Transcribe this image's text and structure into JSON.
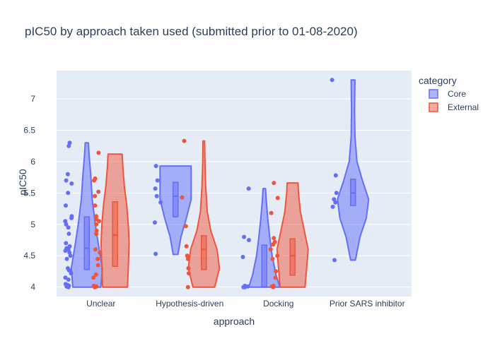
{
  "chart_data": {
    "type": "violin",
    "title": "pIC50 by approach taken used (submitted prior to 01-08-2020)",
    "xlabel": "approach",
    "ylabel": "pIC50",
    "categories": [
      "Unclear",
      "Hypothesis-driven",
      "Docking",
      "Prior SARS inhibitor"
    ],
    "y_ticks": [
      "4",
      "4.5",
      "5",
      "5.5",
      "6",
      "6.5",
      "7"
    ],
    "ylim": [
      3.85,
      7.45
    ],
    "grid": true,
    "legend_title": "category",
    "legend_position": "top-right",
    "colors": {
      "Core": "#636efa",
      "External": "#ef553b",
      "plot_bg": "#e5ecf6",
      "grid": "#ffffff",
      "text": "#2a3f5f"
    },
    "series": [
      {
        "name": "Core",
        "groups": [
          {
            "category": "Unclear",
            "points": [
              4.0,
              4.02,
              4.05,
              4.01,
              4.03,
              4.12,
              4.15,
              4.22,
              4.27,
              4.3,
              4.45,
              4.5,
              4.55,
              4.58,
              4.6,
              4.62,
              4.65,
              4.7,
              4.85,
              4.95,
              5.0,
              5.05,
              5.1,
              5.13,
              5.3,
              5.5,
              5.65,
              5.7,
              5.8,
              6.25,
              6.3
            ],
            "box": {
              "q1": 4.28,
              "median": 4.62,
              "q3": 5.12
            },
            "kde_x": [
              4.0,
              4.3,
              4.6,
              5.0,
              5.4,
              5.8,
              6.1,
              6.3
            ],
            "kde_w": [
              0.9,
              1.0,
              0.8,
              0.55,
              0.35,
              0.25,
              0.15,
              0.1
            ]
          },
          {
            "category": "Hypothesis-driven",
            "points": [
              4.53,
              5.03,
              5.35,
              5.45,
              5.57,
              5.7,
              5.93
            ],
            "box": {
              "q1": 5.12,
              "median": 5.45,
              "q3": 5.67
            },
            "kde_x": [
              4.52,
              4.8,
              5.1,
              5.4,
              5.6,
              5.8,
              5.93
            ],
            "kde_w": [
              0.15,
              0.35,
              0.7,
              1.0,
              1.0,
              1.0,
              1.0
            ]
          },
          {
            "category": "Docking",
            "points": [
              4.0,
              4.01,
              4.02,
              4.0,
              4.48,
              4.75,
              4.8,
              5.57
            ],
            "box": {
              "q1": 4.0,
              "median": 4.0,
              "q3": 4.67
            },
            "kde_x": [
              4.0,
              4.2,
              4.5,
              4.8,
              5.1,
              5.4,
              5.57
            ],
            "kde_w": [
              1.0,
              0.75,
              0.5,
              0.35,
              0.22,
              0.12,
              0.08
            ]
          },
          {
            "category": "Prior SARS inhibitor",
            "points": [
              4.43,
              5.28,
              5.35,
              5.4,
              5.5,
              5.78,
              7.3
            ],
            "box": {
              "q1": 5.3,
              "median": 5.5,
              "q3": 5.72
            },
            "kde_x": [
              4.43,
              4.8,
              5.1,
              5.4,
              5.7,
              6.0,
              6.4,
              6.8,
              7.3
            ],
            "kde_w": [
              0.15,
              0.45,
              0.85,
              1.0,
              0.6,
              0.25,
              0.12,
              0.1,
              0.12
            ]
          }
        ]
      },
      {
        "name": "External",
        "groups": [
          {
            "category": "Unclear",
            "points": [
              4.0,
              4.01,
              4.02,
              4.15,
              4.2,
              4.35,
              4.45,
              4.55,
              4.6,
              4.85,
              4.9,
              5.0,
              5.05,
              5.08,
              5.13,
              5.3,
              5.45,
              5.52,
              5.7,
              5.73,
              6.14
            ],
            "box": {
              "q1": 4.33,
              "median": 4.83,
              "q3": 5.36
            },
            "kde_x": [
              4.0,
              4.3,
              4.7,
              5.0,
              5.3,
              5.6,
              5.9,
              6.12
            ],
            "kde_w": [
              0.8,
              0.85,
              0.9,
              0.85,
              0.75,
              0.6,
              0.5,
              0.45
            ]
          },
          {
            "category": "Hypothesis-driven",
            "points": [
              4.0,
              4.22,
              4.3,
              4.45,
              4.5,
              4.65,
              4.97,
              5.43,
              6.33
            ],
            "box": {
              "q1": 4.28,
              "median": 4.6,
              "q3": 4.82
            },
            "kde_x": [
              4.0,
              4.3,
              4.6,
              4.9,
              5.2,
              5.6,
              6.0,
              6.33
            ],
            "kde_w": [
              0.7,
              1.0,
              0.85,
              0.45,
              0.22,
              0.12,
              0.07,
              0.05
            ]
          },
          {
            "category": "Docking",
            "points": [
              4.0,
              4.01,
              4.02,
              4.15,
              4.25,
              4.45,
              4.5,
              4.6,
              4.68,
              4.72,
              4.78,
              5.18,
              5.42,
              5.66
            ],
            "box": {
              "q1": 4.19,
              "median": 4.5,
              "q3": 4.77
            },
            "kde_x": [
              4.0,
              4.3,
              4.6,
              4.9,
              5.2,
              5.5,
              5.66
            ],
            "kde_w": [
              0.8,
              0.9,
              1.0,
              0.75,
              0.5,
              0.38,
              0.35
            ]
          }
        ]
      }
    ]
  }
}
